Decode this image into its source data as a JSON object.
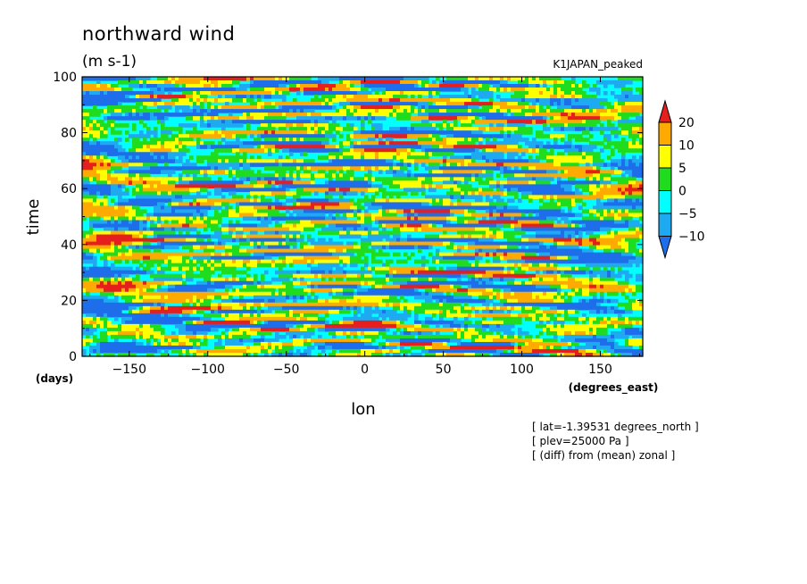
{
  "chart_data": {
    "type": "heatmap",
    "title": "northward wind",
    "units": "(m s-1)",
    "dataset_label": "K1JAPAN_peaked",
    "xlabel": "lon",
    "xunits": "(degrees_east)",
    "ylabel": "time",
    "yunits": "(days)",
    "xlim": [
      -180,
      177
    ],
    "ylim": [
      0,
      100
    ],
    "xticks": [
      -150,
      -100,
      -50,
      0,
      50,
      100,
      150
    ],
    "yticks": [
      0,
      20,
      40,
      60,
      80,
      100
    ],
    "xtick_labels": [
      "−150",
      "−100",
      "−50",
      "0",
      "50",
      "100",
      "150"
    ],
    "ytick_labels": [
      "0",
      "20",
      "40",
      "60",
      "80",
      "100"
    ],
    "colorbar": {
      "levels": [
        -10,
        -5,
        0,
        5,
        10,
        20
      ],
      "labels": [
        "−10",
        "−5",
        "0",
        "5",
        "10",
        "20"
      ],
      "colors": [
        "#1e6eeb",
        "#1eaaf0",
        "#00ffff",
        "#1fdc1f",
        "#ffff00",
        "#ffaa00",
        "#e61e1e"
      ],
      "extend": "both"
    },
    "notes": [
      "[ lat=-1.39531 degrees_north ]",
      "[ plev=25000 Pa ]",
      "[ (diff) from (mean) zonal ]"
    ],
    "grid": false,
    "legend": "right"
  }
}
